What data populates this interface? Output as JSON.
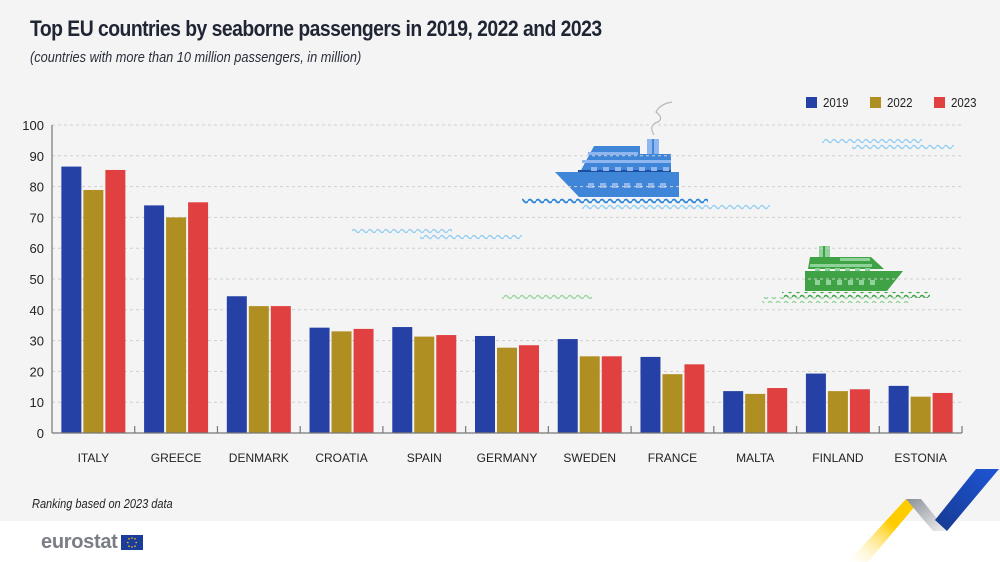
{
  "header": {
    "title": "Top EU countries by seaborne passengers in 2019, 2022 and 2023",
    "subtitle": "(countries with more than 10 million passengers, in million)"
  },
  "legend": [
    {
      "label": "2019",
      "color": "#2541a6"
    },
    {
      "label": "2022",
      "color": "#b08f22"
    },
    {
      "label": "2023",
      "color": "#e04040"
    }
  ],
  "note": "Ranking based on 2023 data",
  "footer": {
    "logo_text": "eurostat",
    "flag_icon": "eu-flag-icon"
  },
  "chart_data": {
    "type": "bar",
    "title": "Top EU countries by seaborne passengers in 2019, 2022 and 2023",
    "subtitle": "(countries with more than 10 million passengers, in million)",
    "xlabel": "",
    "ylabel": "",
    "ylim": [
      0,
      100
    ],
    "yticks": [
      0,
      10,
      20,
      30,
      40,
      50,
      60,
      70,
      80,
      90,
      100
    ],
    "grid": true,
    "legend_position": "top-right",
    "categories": [
      "ITALY",
      "GREECE",
      "DENMARK",
      "CROATIA",
      "SPAIN",
      "GERMANY",
      "SWEDEN",
      "FRANCE",
      "MALTA",
      "FINLAND",
      "ESTONIA"
    ],
    "series": [
      {
        "name": "2019",
        "color": "#2541a6",
        "values": [
          86.5,
          73.9,
          44.4,
          34.2,
          34.4,
          31.5,
          30.5,
          24.7,
          13.6,
          19.3,
          15.3
        ]
      },
      {
        "name": "2022",
        "color": "#b08f22",
        "values": [
          78.9,
          70.0,
          41.2,
          33.0,
          31.3,
          27.7,
          24.9,
          19.1,
          12.7,
          13.6,
          11.8
        ]
      },
      {
        "name": "2023",
        "color": "#e04040",
        "values": [
          85.4,
          74.9,
          41.2,
          33.8,
          31.8,
          28.5,
          24.9,
          22.3,
          14.6,
          14.2,
          13.0
        ]
      }
    ],
    "annotations": [
      "Ranking based on 2023 data"
    ]
  }
}
